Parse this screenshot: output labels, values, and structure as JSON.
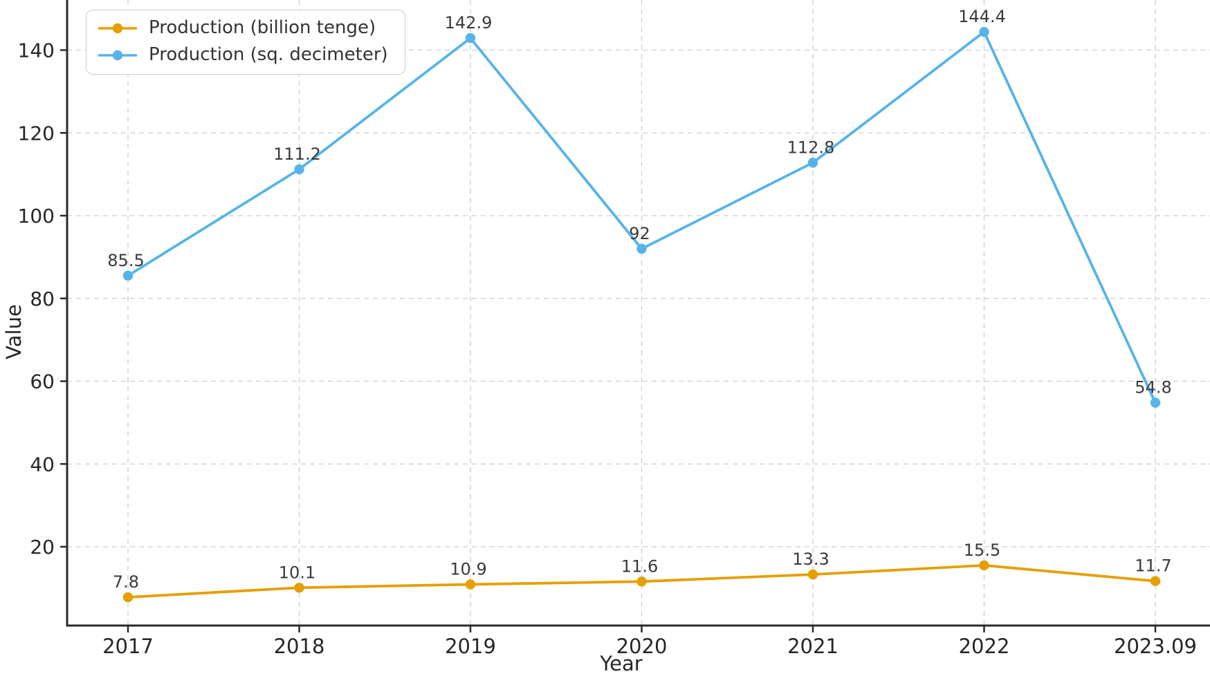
{
  "chart_data": {
    "type": "line",
    "title": "",
    "xlabel": "Year",
    "ylabel": "Value",
    "categories": [
      "2017",
      "2018",
      "2019",
      "2020",
      "2021",
      "2022",
      "2023.09"
    ],
    "series": [
      {
        "name": "Production (billion tenge)",
        "color": "#E69F00",
        "values": [
          7.8,
          10.1,
          10.9,
          11.6,
          13.3,
          15.5,
          11.7
        ],
        "labels": [
          "7.8",
          "10.1",
          "10.9",
          "11.6",
          "13.3",
          "15.5",
          "11.7"
        ]
      },
      {
        "name": "Production (sq. decimeter)",
        "color": "#56B4E9",
        "values": [
          85.5,
          111.2,
          142.9,
          92,
          112.8,
          144.4,
          54.8
        ],
        "labels": [
          "85.5",
          "111.2",
          "142.9",
          "92",
          "112.8",
          "144.4",
          "54.8"
        ]
      }
    ],
    "yticks": [
      20,
      40,
      60,
      80,
      100,
      120,
      140
    ],
    "ylim": [
      0.8,
      152.3
    ],
    "grid": "dashed-both-axes",
    "legend_position": "upper-left"
  },
  "style": {
    "grid_color": "#cdcdcd",
    "spine_color": "#2a2a2a",
    "tick_label_color": "#262626",
    "data_label_color": "#3a3a3a",
    "background": "#ffffff"
  }
}
